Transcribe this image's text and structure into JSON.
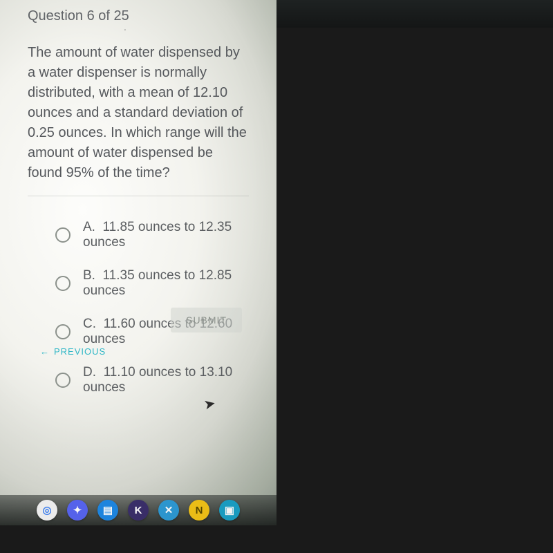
{
  "quiz": {
    "header": "Question 6 of 25",
    "question": "The amount of water dispensed by a water dispenser is normally distributed, with a mean of 12.10 ounces and a standard deviation of 0.25 ounces. In which range will the amount of water dispensed be found 95% of the time?",
    "options": [
      {
        "letter": "A.",
        "text": "11.85 ounces to 12.35 ounces"
      },
      {
        "letter": "B.",
        "text": "11.35 ounces to 12.85 ounces"
      },
      {
        "letter": "C.",
        "text": "11.60 ounces to 12.60 ounces"
      },
      {
        "letter": "D.",
        "text": "11.10 ounces to 13.10 ounces"
      }
    ],
    "submit_label": "SUBMIT",
    "previous_label": "PREVIOUS"
  },
  "taskbar": {
    "items": [
      {
        "name": "chrome",
        "glyph": "◎",
        "bg": "#f4f4f4",
        "fg": "#4285f4"
      },
      {
        "name": "discord",
        "glyph": "✦",
        "bg": "#5865f2",
        "fg": "#ffffff"
      },
      {
        "name": "docs",
        "glyph": "▤",
        "bg": "#1e88e5",
        "fg": "#ffffff"
      },
      {
        "name": "kahoot",
        "glyph": "K",
        "bg": "#3b2f6b",
        "fg": "#ffffff"
      },
      {
        "name": "close",
        "glyph": "✕",
        "bg": "#2e9bd6",
        "fg": "#ffffff"
      },
      {
        "name": "note",
        "glyph": "N",
        "bg": "#f5c518",
        "fg": "#5a4a00"
      },
      {
        "name": "files",
        "glyph": "▣",
        "bg": "#1aa3c9",
        "fg": "#ffffff"
      }
    ]
  },
  "colors": {
    "link": "#2fb7c6",
    "text": "#5a5d60",
    "radio_border": "#8b918b"
  }
}
